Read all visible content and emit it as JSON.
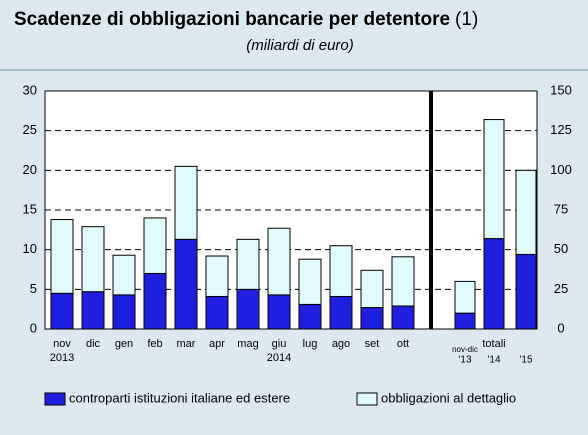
{
  "chart_data": {
    "type": "bar",
    "stacked": true,
    "title": "Scadenze di obbligazioni bancarie  per detentore",
    "title_note": "(1)",
    "subtitle": "(miliardi di euro)",
    "categories": [
      "nov",
      "dic",
      "gen",
      "feb",
      "mar",
      "apr",
      "mag",
      "giu",
      "lug",
      "ago",
      "set",
      "ott"
    ],
    "year_labels": [
      {
        "index": 0,
        "label": "2013"
      },
      {
        "index": 7,
        "label": "2014"
      }
    ],
    "series": [
      {
        "name": "controparti istituzioni italiane ed estere",
        "color": "#1f1fe0",
        "values": [
          4.5,
          4.7,
          4.3,
          7.0,
          11.3,
          4.1,
          5.0,
          4.3,
          3.1,
          4.1,
          2.7,
          2.9
        ]
      },
      {
        "name": "obbligazioni al dettaglio",
        "color": "#e0fbfb",
        "values": [
          9.3,
          8.2,
          5.0,
          7.0,
          9.2,
          5.1,
          6.3,
          8.4,
          5.7,
          6.4,
          4.7,
          6.2
        ]
      }
    ],
    "totals": {
      "label": "totali",
      "first_label": "nov-dic",
      "categories": [
        "'13",
        "'14",
        "'15"
      ],
      "axis": "y2",
      "series": [
        {
          "values": [
            10,
            57,
            47
          ]
        },
        {
          "values": [
            20,
            75,
            53
          ]
        }
      ]
    },
    "ylim": [
      0,
      30
    ],
    "yticks": [
      0,
      5,
      10,
      15,
      20,
      25,
      30
    ],
    "y2lim": [
      0,
      150
    ],
    "y2ticks": [
      0,
      25,
      50,
      75,
      100,
      125,
      150
    ],
    "grid": true
  }
}
